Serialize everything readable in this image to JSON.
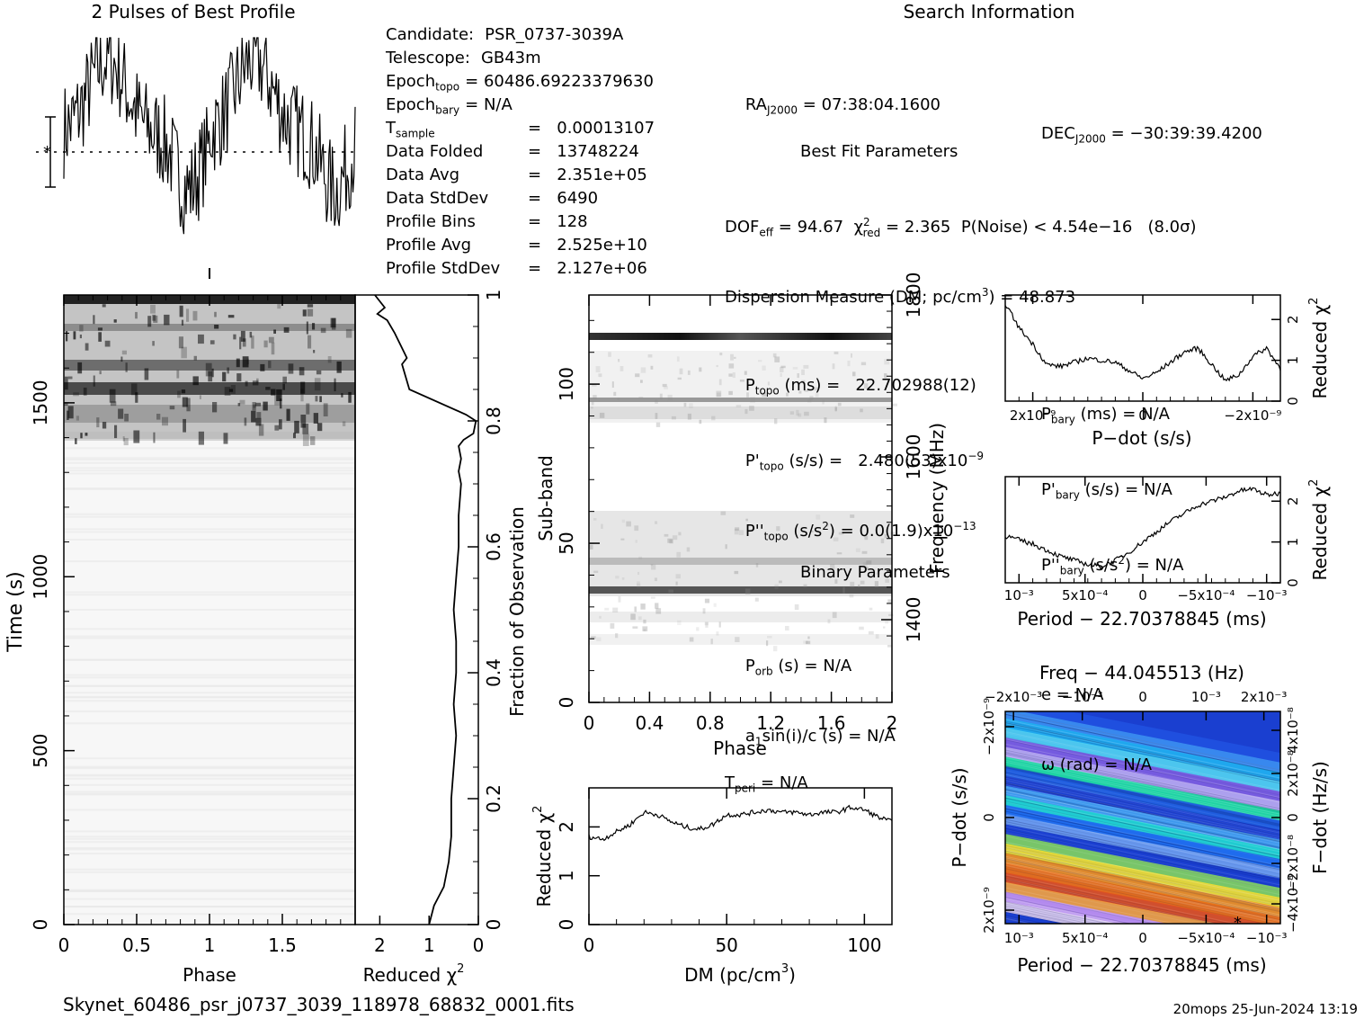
{
  "titles": {
    "profile": "2 Pulses of Best Profile",
    "search": "Search Information",
    "best_fit": "Best Fit Parameters",
    "binary": "Binary Parameters",
    "filename": "Skynet_60486_psr_j0737_3039_118978_68832_0001.fits",
    "footer": "20mops 25-Jun-2024 13:19"
  },
  "info_left": [
    {
      "label": "Candidate:",
      "value": "PSR_0737-3039A"
    },
    {
      "label": "Telescope:",
      "value": "GB43m"
    },
    {
      "label": "Epoch",
      "sub": "topo",
      "value": "= 60486.69223379630"
    },
    {
      "label": "Epoch",
      "sub": "bary",
      "value": "= N/A"
    },
    {
      "label": "T",
      "sub": "sample",
      "value": "=   0.00013107"
    },
    {
      "label": "Data Folded",
      "value": "=   13748224"
    },
    {
      "label": "Data Avg",
      "value": "=   2.351e+05"
    },
    {
      "label": "Data StdDev",
      "value": "=   6490"
    },
    {
      "label": "Profile Bins",
      "value": "=   128"
    },
    {
      "label": "Profile Avg",
      "value": "=   2.525e+10"
    },
    {
      "label": "Profile StdDev",
      "value": "=   2.127e+06"
    }
  ],
  "info_right": {
    "ra": "RA",
    "ra_sub": "J2000",
    "ra_val": "= 07:38:04.1600",
    "dec": "DEC",
    "dec_sub": "J2000",
    "dec_val": "= −30:39:39.4200",
    "dof": "DOF",
    "dof_sub": "eff",
    "dof_val": "= 94.67",
    "chi": "χ",
    "chi_sub": "red",
    "chi_val": "= 2.365",
    "pnoise": "P(Noise) < 4.54e−16   (8.0σ)",
    "dm": "Dispersion Measure (DM; pc/cm",
    "dm_val": ") = 48.873",
    "ptopo": "(ms) =   22.702988(12)",
    "pdtopo": "(s/s) =   2.480(53)x10",
    "pdtopo_exp": "−9",
    "pddtopo": "(s/s",
    "pddtopo_val": ") = 0.0(1.9)x10",
    "pddtopo_exp": "−13",
    "pbary": "(ms) = N/A",
    "pdbary": "(s/s) = N/A",
    "pddbary": "(s/s",
    "pddbary_val": ") = N/A",
    "porb": "(s) = N/A",
    "a1": "a",
    "a1_rest": "sin(i)/c (s) = N/A",
    "tperi": "= N/A",
    "ecc": "e = N/A",
    "omega": "ω (rad) = N/A"
  },
  "axes": {
    "phase": "Phase",
    "time": "Time (s)",
    "redchi": "Reduced",
    "foo": "Fraction of Observation",
    "subband": "Sub-band",
    "frequency": "Frequency (MHz)",
    "dm": "DM (pc/cm",
    "pdot": "P−dot (s/s)",
    "period": "Period − 22.70378845 (ms)",
    "freq": "Freq − 44.045513 (Hz)",
    "fdot": "F−dot (Hz/s)"
  },
  "colors": {
    "text": "#000000",
    "background": "#ffffff"
  },
  "chart_data": [
    {
      "type": "line",
      "name": "profile",
      "title": "2 Pulses of Best Profile",
      "xlim": [
        0,
        2
      ],
      "values_shape": "two pulses, 128 bins each"
    },
    {
      "type": "heatmap",
      "name": "time-phase",
      "xlabel": "Phase",
      "ylabel": "Time (s)",
      "xlim": [
        0,
        2
      ],
      "ylim": [
        0,
        1810
      ],
      "xticks": [
        "0",
        "0.5",
        "1",
        "1.5"
      ],
      "yticks": [
        "0",
        "500",
        "1000",
        "1500"
      ]
    },
    {
      "type": "line",
      "name": "redchi-vs-time",
      "xlabel": "Reduced χ²",
      "ylabel": "Fraction of Observation",
      "xlim": [
        2.5,
        0
      ],
      "ylim": [
        0,
        1
      ],
      "xticks": [
        "2",
        "1",
        "0"
      ],
      "yticks": [
        "0",
        "0.2",
        "0.4",
        "0.6",
        "0.8",
        "1"
      ],
      "x": [
        1.0,
        0.9,
        0.7,
        0.6,
        0.55,
        0.55,
        0.5,
        0.45,
        0.5,
        0.45,
        0.45,
        0.5,
        0.45,
        0.4,
        0.4,
        0.35,
        0.4,
        0.35,
        0.4,
        0.3,
        0.1,
        0.05,
        0.25,
        1.4,
        1.55,
        1.45,
        1.7,
        1.85,
        2.05,
        1.9,
        2.1
      ],
      "y": [
        0.0,
        0.03,
        0.06,
        0.1,
        0.14,
        0.2,
        0.25,
        0.3,
        0.35,
        0.4,
        0.45,
        0.5,
        0.55,
        0.6,
        0.65,
        0.7,
        0.72,
        0.74,
        0.76,
        0.77,
        0.78,
        0.8,
        0.81,
        0.85,
        0.89,
        0.9,
        0.94,
        0.96,
        0.97,
        0.98,
        1.0
      ]
    },
    {
      "type": "heatmap",
      "name": "subband-phase",
      "xlabel": "Phase",
      "ylabel": "Sub-band",
      "xlim": [
        0,
        2
      ],
      "ylim": [
        0,
        128
      ],
      "xticks": [
        "0",
        "0.4",
        "0.8",
        "1.2",
        "1.6",
        "2"
      ],
      "yticks": [
        "0",
        "50",
        "100"
      ],
      "freq_ticks": [
        "1400",
        "1600",
        "1800"
      ]
    },
    {
      "type": "line",
      "name": "redchi-vs-dm",
      "xlabel": "DM (pc/cm³)",
      "ylabel": "Reduced χ²",
      "xlim": [
        0,
        110
      ],
      "ylim": [
        0,
        2.8
      ],
      "xticks": [
        "0",
        "50",
        "100"
      ],
      "yticks": [
        "0",
        "1",
        "2"
      ],
      "x": [
        0,
        5,
        10,
        15,
        20,
        25,
        30,
        35,
        40,
        45,
        50,
        55,
        60,
        65,
        70,
        75,
        80,
        85,
        90,
        95,
        100,
        105,
        110
      ],
      "y": [
        1.8,
        1.75,
        1.9,
        2.05,
        2.3,
        2.25,
        2.1,
        2.0,
        1.95,
        2.05,
        2.25,
        2.25,
        2.3,
        2.35,
        2.3,
        2.3,
        2.25,
        2.3,
        2.3,
        2.4,
        2.35,
        2.2,
        2.1
      ]
    },
    {
      "type": "line",
      "name": "redchi-vs-pdot",
      "xlabel": "P−dot (s/s)",
      "ylabel": "Reduced χ²",
      "ylim": [
        0,
        2.6
      ],
      "xticks": [
        "2x10⁻⁹",
        "0",
        "−2x10⁻⁹"
      ],
      "yticks": [
        "0",
        "1",
        "2"
      ],
      "x": [
        0,
        0.05,
        0.1,
        0.15,
        0.2,
        0.25,
        0.3,
        0.35,
        0.4,
        0.45,
        0.5,
        0.55,
        0.6,
        0.65,
        0.7,
        0.75,
        0.8,
        0.85,
        0.9,
        0.95,
        1.0
      ],
      "y": [
        2.4,
        1.8,
        1.4,
        0.9,
        0.85,
        0.95,
        1.05,
        1.0,
        0.95,
        0.75,
        0.55,
        0.7,
        0.95,
        1.2,
        1.3,
        0.9,
        0.5,
        0.65,
        1.1,
        1.3,
        0.8
      ]
    },
    {
      "type": "line",
      "name": "redchi-vs-period",
      "xlabel": "Period − 22.70378845 (ms)",
      "ylabel": "Reduced χ²",
      "ylim": [
        0,
        2.6
      ],
      "xticks": [
        "10⁻³",
        "5x10⁻⁴",
        "0",
        "−5x10⁻⁴",
        "−10⁻³"
      ],
      "yticks": [
        "0",
        "1",
        "2"
      ],
      "x": [
        0,
        0.05,
        0.1,
        0.15,
        0.2,
        0.25,
        0.3,
        0.35,
        0.4,
        0.45,
        0.5,
        0.55,
        0.6,
        0.65,
        0.7,
        0.75,
        0.8,
        0.85,
        0.9,
        0.95,
        1.0
      ],
      "y": [
        1.15,
        1.05,
        0.95,
        0.8,
        0.65,
        0.55,
        0.45,
        0.4,
        0.55,
        0.75,
        1.0,
        1.25,
        1.5,
        1.7,
        1.9,
        2.0,
        2.1,
        2.25,
        2.3,
        2.15,
        2.2
      ]
    },
    {
      "type": "heatmap",
      "name": "period-pdot",
      "xlabel": "Period − 22.70378845 (ms)",
      "ylabel": "P−dot (s/s)",
      "top_label": "Freq − 44.045513 (Hz)",
      "right_label": "F−dot (Hz/s)",
      "xticks": [
        "10⁻³",
        "5x10⁻⁴",
        "0",
        "−5x10⁻⁴",
        "−10⁻³"
      ],
      "top_ticks": [
        "−2x10⁻³",
        "−10⁻³",
        "0",
        "10⁻³",
        "2x10⁻³"
      ],
      "yticks": [
        "2x10⁻⁹",
        "0",
        "−2x10⁻⁹"
      ],
      "right_ticks": [
        "−4x10⁻⁸",
        "−2x10⁻⁸",
        "0",
        "2x10⁻⁸",
        "4x10⁻⁸"
      ]
    }
  ]
}
